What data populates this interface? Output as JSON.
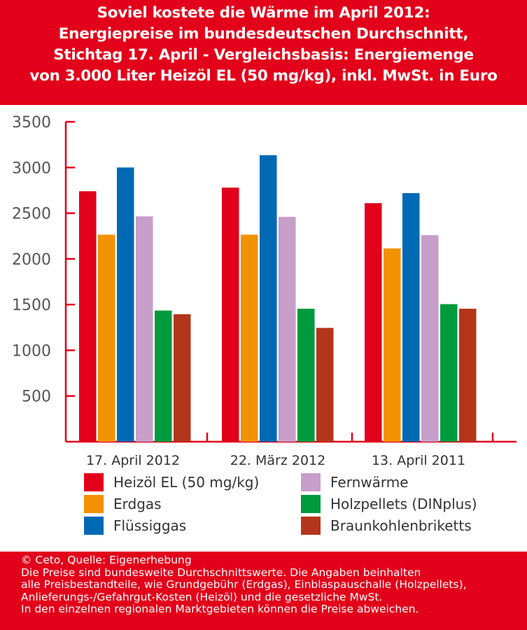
{
  "title_lines": [
    "Soviel kostete die Wärme im April 2012:",
    "Energiepreise im bundesdeutschen Durchschnitt,",
    "Stichtag 17. April - Vergleichsbasis: Energiemenge",
    "von 3.000 Liter Heizöl EL (50 mg/kg), inkl. MwSt. in Euro"
  ],
  "chart_data": {
    "type": "bar",
    "title": "Soviel kostete die Wärme im April 2012",
    "categories": [
      "17. April 2012",
      "22. März 2012",
      "13. April 2011"
    ],
    "ylim": [
      0,
      3500
    ],
    "yticks": [
      "500",
      "1000",
      "1500",
      "2000",
      "2500",
      "3000",
      "3500"
    ],
    "grid": false,
    "legend_position": "bottom",
    "series": [
      {
        "name": "Heizöl EL (50 mg/kg)",
        "color": "#e2001a",
        "values": [
          2740,
          2780,
          2610
        ]
      },
      {
        "name": "Erdgas",
        "color": "#f39200",
        "values": [
          2265,
          2265,
          2115
        ]
      },
      {
        "name": "Flüssiggas",
        "color": "#0069b4",
        "values": [
          3000,
          3135,
          2720
        ]
      },
      {
        "name": "Fernwärme",
        "color": "#c79dc9",
        "values": [
          2465,
          2460,
          2260
        ]
      },
      {
        "name": "Holzpellets (DINplus)",
        "color": "#009a3e",
        "values": [
          1435,
          1455,
          1505
        ]
      },
      {
        "name": "Braunkohlenbriketts",
        "color": "#b3361b",
        "values": [
          1395,
          1245,
          1455
        ]
      }
    ]
  },
  "footer_lines": [
    "© Ceto, Quelle: Eigenerhebung",
    "Die Preise sind bundesweite Durchschnittswerte. Die Angaben beinhalten",
    "alle Preisbestandteile, wie Grundgebühr (Erdgas), Einblaspauschalle (Holzpellets),",
    "Anlieferungs-/Gefahrgut-Kosten (Heizöl) und die gesetzliche MwSt.",
    "In den einzelnen regionalen Marktgebieten können die Preise abweichen."
  ]
}
